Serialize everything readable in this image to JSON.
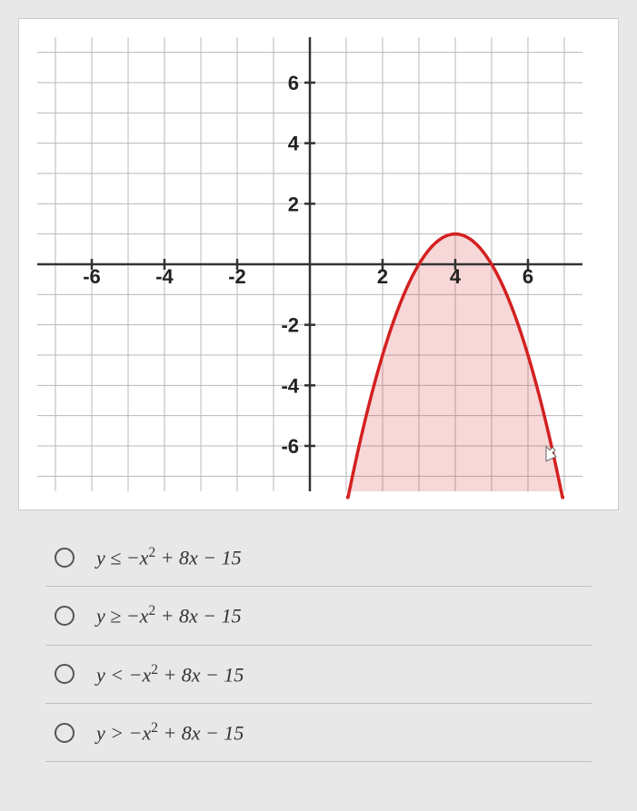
{
  "chart": {
    "type": "inequality-graph",
    "xlim": [
      -7.5,
      7.5
    ],
    "ylim": [
      -7.5,
      7.5
    ],
    "xticks": [
      -6,
      -4,
      -2,
      2,
      4,
      6
    ],
    "yticks": [
      -6,
      -4,
      -2,
      2,
      4,
      6
    ],
    "x_labels": [
      "-6",
      "-4",
      "-2",
      "2",
      "4",
      "6"
    ],
    "y_labels": [
      "-6",
      "-4",
      "-2",
      "2",
      "4",
      "6"
    ],
    "background_color": "#ffffff",
    "grid_color": "#b8b8b8",
    "axis_color": "#333333",
    "curve_color": "#d42020",
    "shade_color": "#d42020",
    "shade_opacity": 0.18,
    "curve_width": 3.5,
    "label_fontsize": 22,
    "parabola": {
      "a": -1,
      "b": 8,
      "c": -15,
      "vertex_x": 4,
      "vertex_y": 1
    },
    "shade_region": "below"
  },
  "options": [
    {
      "text": "y ≤ −x² + 8x − 15"
    },
    {
      "text": "y ≥ −x² + 8x − 15"
    },
    {
      "text": "y < −x² + 8x − 15"
    },
    {
      "text": "y > −x² + 8x − 15"
    }
  ]
}
